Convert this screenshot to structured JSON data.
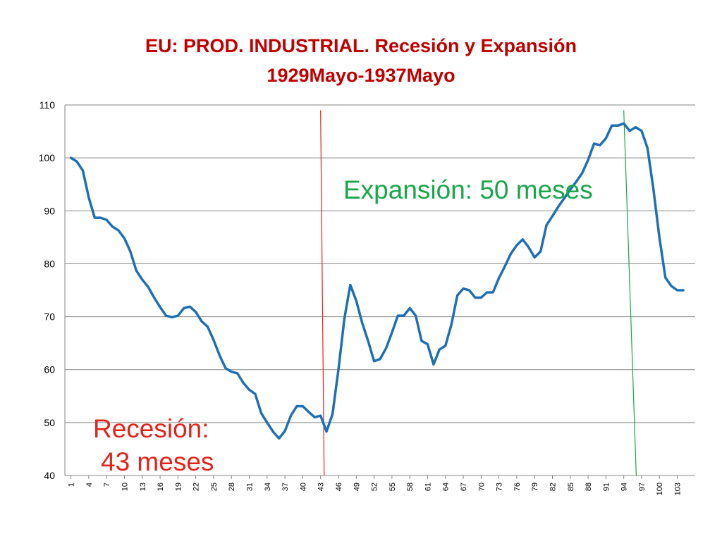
{
  "chart_data": {
    "type": "line",
    "title": "EU: PROD. INDUSTRIAL. Recesión y Expansión",
    "subtitle": "1929Mayo-1937Mayo",
    "ylim": [
      40,
      110
    ],
    "yticks": [
      40,
      50,
      60,
      70,
      80,
      90,
      100,
      110
    ],
    "xlim": [
      1,
      105
    ],
    "xticks": [
      1,
      4,
      7,
      10,
      13,
      16,
      19,
      22,
      25,
      28,
      31,
      34,
      37,
      40,
      43,
      46,
      49,
      52,
      55,
      58,
      61,
      64,
      67,
      70,
      73,
      76,
      79,
      82,
      85,
      88,
      91,
      94,
      97,
      100,
      103
    ],
    "grid": true,
    "series": [
      {
        "color": "#1f6fb5",
        "values": [
          100.0,
          99.3,
          97.6,
          92.5,
          88.7,
          88.7,
          88.3,
          87.0,
          86.3,
          84.8,
          82.3,
          78.7,
          77.0,
          75.6,
          73.6,
          71.8,
          70.2,
          69.9,
          70.2,
          71.6,
          71.9,
          70.9,
          69.1,
          68.1,
          65.6,
          62.7,
          60.3,
          59.6,
          59.3,
          57.5,
          56.2,
          55.4,
          51.8,
          50.0,
          48.3,
          47.0,
          48.4,
          51.3,
          53.1,
          53.1,
          52.0,
          51.0,
          51.3,
          48.3,
          51.6,
          60.0,
          69.6,
          76.0,
          73.0,
          68.8,
          65.4,
          61.6,
          62.0,
          64.0,
          67.0,
          70.2,
          70.2,
          71.6,
          70.2,
          65.4,
          64.8,
          61.0,
          63.8,
          64.5,
          68.5,
          74.0,
          75.3,
          75.0,
          73.6,
          73.6,
          74.6,
          74.6,
          77.3,
          79.5,
          81.9,
          83.5,
          84.6,
          83.1,
          81.2,
          82.3,
          87.3,
          89.0,
          90.8,
          92.4,
          94.0,
          95.5,
          97.1,
          99.6,
          102.7,
          102.4,
          103.7,
          106.1,
          106.1,
          106.5,
          105.1,
          105.8,
          105.1,
          101.8,
          94.0,
          85.0,
          77.4,
          75.8,
          75.0,
          75.0
        ]
      }
    ],
    "vlines": [
      {
        "x_top": 43,
        "x_bottom": 43.6,
        "y_top": 109,
        "y_bottom": 40,
        "color": "#e3231b"
      },
      {
        "x_top": 94,
        "x_bottom": 96.1,
        "y_top": 109,
        "y_bottom": 40,
        "color": "#1aa64a"
      }
    ],
    "annotations": {
      "expansion": "Expansión: 50 meses",
      "recession_line1": "Recesión:",
      "recession_line2": "43 meses"
    }
  }
}
